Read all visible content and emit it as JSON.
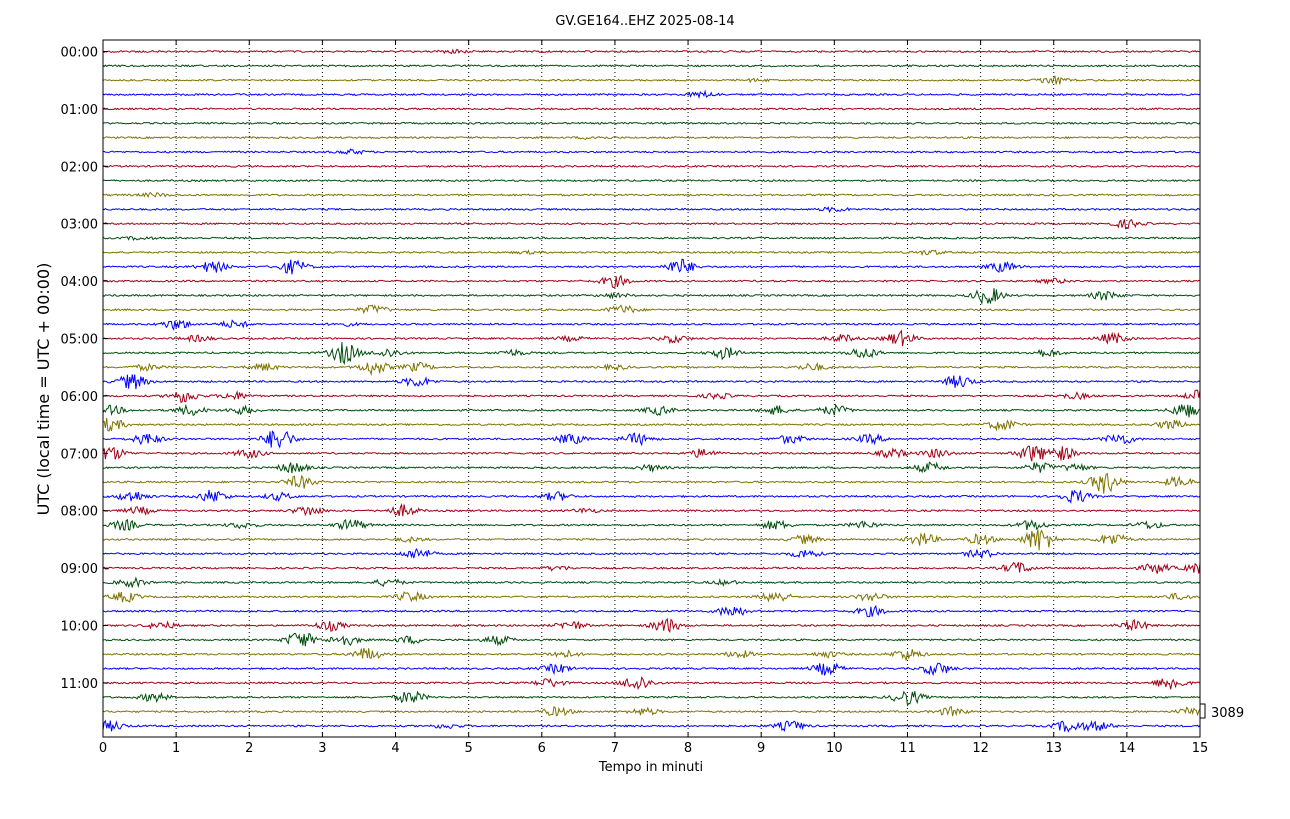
{
  "chart_data": {
    "type": "line",
    "title": "GV.GE164..EHZ 2025-08-14",
    "xlabel": "Tempo in minuti",
    "ylabel": "UTC (local time = UTC + 00:00)",
    "xlim": [
      0,
      15
    ],
    "x_ticks": [
      "0",
      "1",
      "2",
      "3",
      "4",
      "5",
      "6",
      "7",
      "8",
      "9",
      "10",
      "11",
      "12",
      "13",
      "14",
      "15"
    ],
    "y_ticks": [
      "00:00",
      "01:00",
      "02:00",
      "03:00",
      "04:00",
      "05:00",
      "06:00",
      "07:00",
      "08:00",
      "09:00",
      "10:00",
      "11:00"
    ],
    "scale_label": "3089",
    "grid": "vertical dotted lines at each minute",
    "rows_per_hour": 4,
    "row_colors": [
      "#a00016",
      "#004d0e",
      "#7f7300",
      "#0000ff"
    ],
    "series": [
      {
        "start": "00:00",
        "events": [
          {
            "t": 4.8,
            "a": 0.2
          }
        ]
      },
      {
        "start": "00:15",
        "events": []
      },
      {
        "start": "00:30",
        "events": [
          {
            "t": 13.0,
            "a": 0.6
          },
          {
            "t": 8.9,
            "a": 0.15
          }
        ]
      },
      {
        "start": "00:45",
        "events": [
          {
            "t": 8.2,
            "a": 0.4
          }
        ]
      },
      {
        "start": "01:00",
        "events": []
      },
      {
        "start": "01:15",
        "events": []
      },
      {
        "start": "01:30",
        "events": [
          {
            "t": 6.7,
            "a": 0.2
          }
        ]
      },
      {
        "start": "01:45",
        "events": [
          {
            "t": 3.4,
            "a": 0.3
          }
        ]
      },
      {
        "start": "02:00",
        "events": []
      },
      {
        "start": "02:15",
        "events": []
      },
      {
        "start": "02:30",
        "events": [
          {
            "t": 0.7,
            "a": 0.25
          }
        ]
      },
      {
        "start": "02:45",
        "events": [
          {
            "t": 10.0,
            "a": 0.3
          }
        ]
      },
      {
        "start": "03:00",
        "events": [
          {
            "t": 14.0,
            "a": 0.6
          }
        ]
      },
      {
        "start": "03:15",
        "events": [
          {
            "t": 0.5,
            "a": 0.2
          }
        ]
      },
      {
        "start": "03:30",
        "events": [
          {
            "t": 11.3,
            "a": 0.3
          },
          {
            "t": 5.8,
            "a": 0.15
          }
        ]
      },
      {
        "start": "03:45",
        "events": [
          {
            "t": 1.5,
            "a": 0.8
          },
          {
            "t": 2.6,
            "a": 1.0
          },
          {
            "t": 7.9,
            "a": 1.1
          },
          {
            "t": 12.3,
            "a": 0.7
          }
        ]
      },
      {
        "start": "04:00",
        "events": [
          {
            "t": 7.0,
            "a": 0.8
          },
          {
            "t": 13.0,
            "a": 0.3
          }
        ]
      },
      {
        "start": "04:15",
        "events": [
          {
            "t": 7.0,
            "a": 0.3
          },
          {
            "t": 12.1,
            "a": 1.2
          },
          {
            "t": 13.7,
            "a": 0.6
          }
        ]
      },
      {
        "start": "04:30",
        "events": [
          {
            "t": 3.7,
            "a": 0.6
          },
          {
            "t": 7.1,
            "a": 0.6
          }
        ]
      },
      {
        "start": "04:45",
        "events": [
          {
            "t": 1.0,
            "a": 0.7
          },
          {
            "t": 1.8,
            "a": 0.5
          },
          {
            "t": 3.3,
            "a": 0.2
          }
        ]
      },
      {
        "start": "05:00",
        "events": [
          {
            "t": 1.3,
            "a": 0.4
          },
          {
            "t": 6.4,
            "a": 0.3
          },
          {
            "t": 7.8,
            "a": 0.5
          },
          {
            "t": 10.1,
            "a": 0.5
          },
          {
            "t": 10.9,
            "a": 1.0
          },
          {
            "t": 13.8,
            "a": 0.7
          }
        ]
      },
      {
        "start": "05:15",
        "events": [
          {
            "t": 3.9,
            "a": 0.6
          },
          {
            "t": 5.6,
            "a": 0.4
          },
          {
            "t": 8.5,
            "a": 0.8
          },
          {
            "t": 10.4,
            "a": 0.8
          },
          {
            "t": 12.9,
            "a": 0.5
          },
          {
            "t": 3.3,
            "a": 1.5
          }
        ]
      },
      {
        "start": "05:30",
        "events": [
          {
            "t": 0.6,
            "a": 0.4
          },
          {
            "t": 2.2,
            "a": 0.5
          },
          {
            "t": 3.7,
            "a": 1.0
          },
          {
            "t": 4.3,
            "a": 0.6
          },
          {
            "t": 7.0,
            "a": 0.3
          },
          {
            "t": 9.7,
            "a": 0.5
          }
        ]
      },
      {
        "start": "05:45",
        "events": [
          {
            "t": 0.4,
            "a": 1.1
          },
          {
            "t": 4.3,
            "a": 0.7
          },
          {
            "t": 11.7,
            "a": 0.9
          }
        ]
      },
      {
        "start": "06:00",
        "events": [
          {
            "t": 1.1,
            "a": 0.9
          },
          {
            "t": 1.8,
            "a": 0.5
          },
          {
            "t": 8.4,
            "a": 0.4
          },
          {
            "t": 13.3,
            "a": 0.4
          },
          {
            "t": 15.0,
            "a": 0.8
          }
        ]
      },
      {
        "start": "06:15",
        "events": [
          {
            "t": 1.2,
            "a": 0.7
          },
          {
            "t": 1.9,
            "a": 0.5
          },
          {
            "t": 7.6,
            "a": 0.6
          },
          {
            "t": 9.2,
            "a": 0.6
          },
          {
            "t": 10.0,
            "a": 0.7
          },
          {
            "t": 14.8,
            "a": 1.0
          },
          {
            "t": 0.1,
            "a": 0.6
          }
        ]
      },
      {
        "start": "06:30",
        "events": [
          {
            "t": 0.1,
            "a": 0.9
          },
          {
            "t": 12.3,
            "a": 0.8
          },
          {
            "t": 14.6,
            "a": 0.6
          }
        ]
      },
      {
        "start": "06:45",
        "events": [
          {
            "t": 0.6,
            "a": 0.8
          },
          {
            "t": 2.4,
            "a": 1.6
          },
          {
            "t": 6.4,
            "a": 0.7
          },
          {
            "t": 7.3,
            "a": 0.8
          },
          {
            "t": 9.4,
            "a": 0.6
          },
          {
            "t": 10.5,
            "a": 0.6
          },
          {
            "t": 13.9,
            "a": 0.8
          }
        ]
      },
      {
        "start": "07:00",
        "events": [
          {
            "t": 0.1,
            "a": 1.0
          },
          {
            "t": 2.0,
            "a": 0.6
          },
          {
            "t": 8.2,
            "a": 0.6
          },
          {
            "t": 10.8,
            "a": 0.6
          },
          {
            "t": 11.4,
            "a": 0.6
          },
          {
            "t": 12.7,
            "a": 1.2
          },
          {
            "t": 13.1,
            "a": 1.0
          }
        ]
      },
      {
        "start": "07:15",
        "events": [
          {
            "t": 2.6,
            "a": 0.8
          },
          {
            "t": 7.5,
            "a": 0.4
          },
          {
            "t": 11.3,
            "a": 0.7
          },
          {
            "t": 12.8,
            "a": 0.7
          },
          {
            "t": 13.3,
            "a": 0.5
          }
        ]
      },
      {
        "start": "07:30",
        "events": [
          {
            "t": 2.7,
            "a": 0.9
          },
          {
            "t": 13.7,
            "a": 1.6
          },
          {
            "t": 14.7,
            "a": 0.7
          }
        ]
      },
      {
        "start": "07:45",
        "events": [
          {
            "t": 0.4,
            "a": 0.8
          },
          {
            "t": 1.5,
            "a": 0.9
          },
          {
            "t": 2.4,
            "a": 0.5
          },
          {
            "t": 6.2,
            "a": 0.6
          },
          {
            "t": 13.3,
            "a": 0.9
          }
        ]
      },
      {
        "start": "08:00",
        "events": [
          {
            "t": 2.8,
            "a": 0.7
          },
          {
            "t": 4.1,
            "a": 0.8
          },
          {
            "t": 6.6,
            "a": 0.3
          },
          {
            "t": 0.5,
            "a": 0.5
          }
        ]
      },
      {
        "start": "08:15",
        "events": [
          {
            "t": 0.3,
            "a": 0.7
          },
          {
            "t": 1.9,
            "a": 0.4
          },
          {
            "t": 3.4,
            "a": 0.8
          },
          {
            "t": 9.2,
            "a": 0.6
          },
          {
            "t": 12.7,
            "a": 0.7
          },
          {
            "t": 14.3,
            "a": 0.5
          },
          {
            "t": 10.4,
            "a": 0.5
          }
        ]
      },
      {
        "start": "08:30",
        "events": [
          {
            "t": 9.6,
            "a": 0.6
          },
          {
            "t": 11.2,
            "a": 0.9
          },
          {
            "t": 12.0,
            "a": 0.7
          },
          {
            "t": 12.8,
            "a": 1.8
          },
          {
            "t": 13.8,
            "a": 0.9
          },
          {
            "t": 4.2,
            "a": 0.3
          }
        ]
      },
      {
        "start": "08:45",
        "events": [
          {
            "t": 4.3,
            "a": 0.8
          },
          {
            "t": 9.6,
            "a": 0.6
          },
          {
            "t": 12.0,
            "a": 0.6
          }
        ]
      },
      {
        "start": "09:00",
        "events": [
          {
            "t": 12.5,
            "a": 0.8
          },
          {
            "t": 14.4,
            "a": 0.7
          },
          {
            "t": 15.0,
            "a": 0.8
          },
          {
            "t": 6.2,
            "a": 0.3
          }
        ]
      },
      {
        "start": "09:15",
        "events": [
          {
            "t": 0.4,
            "a": 0.6
          },
          {
            "t": 3.9,
            "a": 0.5
          },
          {
            "t": 8.5,
            "a": 0.3
          }
        ]
      },
      {
        "start": "09:30",
        "events": [
          {
            "t": 0.3,
            "a": 0.7
          },
          {
            "t": 4.2,
            "a": 0.7
          },
          {
            "t": 9.2,
            "a": 0.8
          },
          {
            "t": 10.5,
            "a": 0.6
          },
          {
            "t": 14.7,
            "a": 0.4
          }
        ]
      },
      {
        "start": "09:45",
        "events": [
          {
            "t": 8.6,
            "a": 0.8
          },
          {
            "t": 10.5,
            "a": 0.7
          }
        ]
      },
      {
        "start": "10:00",
        "events": [
          {
            "t": 0.8,
            "a": 0.5
          },
          {
            "t": 3.1,
            "a": 0.7
          },
          {
            "t": 6.4,
            "a": 0.6
          },
          {
            "t": 7.7,
            "a": 1.0
          },
          {
            "t": 14.1,
            "a": 0.7
          }
        ]
      },
      {
        "start": "10:15",
        "events": [
          {
            "t": 2.7,
            "a": 1.2
          },
          {
            "t": 3.3,
            "a": 0.8
          },
          {
            "t": 4.2,
            "a": 0.5
          },
          {
            "t": 5.4,
            "a": 0.6
          }
        ]
      },
      {
        "start": "10:30",
        "events": [
          {
            "t": 3.6,
            "a": 0.9
          },
          {
            "t": 6.3,
            "a": 0.5
          },
          {
            "t": 8.7,
            "a": 0.5
          },
          {
            "t": 11.0,
            "a": 0.8
          },
          {
            "t": 9.9,
            "a": 0.4
          }
        ]
      },
      {
        "start": "10:45",
        "events": [
          {
            "t": 6.2,
            "a": 0.6
          },
          {
            "t": 9.9,
            "a": 0.9
          },
          {
            "t": 11.4,
            "a": 0.9
          }
        ]
      },
      {
        "start": "11:00",
        "events": [
          {
            "t": 6.1,
            "a": 0.6
          },
          {
            "t": 7.3,
            "a": 1.1
          },
          {
            "t": 14.6,
            "a": 1.0
          }
        ]
      },
      {
        "start": "11:15",
        "events": [
          {
            "t": 0.7,
            "a": 0.6
          },
          {
            "t": 4.2,
            "a": 0.9
          },
          {
            "t": 11.0,
            "a": 1.1
          }
        ]
      },
      {
        "start": "11:30",
        "events": [
          {
            "t": 6.2,
            "a": 0.6
          },
          {
            "t": 7.4,
            "a": 0.5
          },
          {
            "t": 11.6,
            "a": 0.6
          },
          {
            "t": 14.9,
            "a": 0.6
          }
        ]
      },
      {
        "start": "11:45",
        "events": [
          {
            "t": 0.1,
            "a": 0.7
          },
          {
            "t": 4.7,
            "a": 0.3
          },
          {
            "t": 9.4,
            "a": 0.7
          },
          {
            "t": 13.2,
            "a": 0.8
          },
          {
            "t": 13.6,
            "a": 0.6
          }
        ]
      }
    ]
  }
}
